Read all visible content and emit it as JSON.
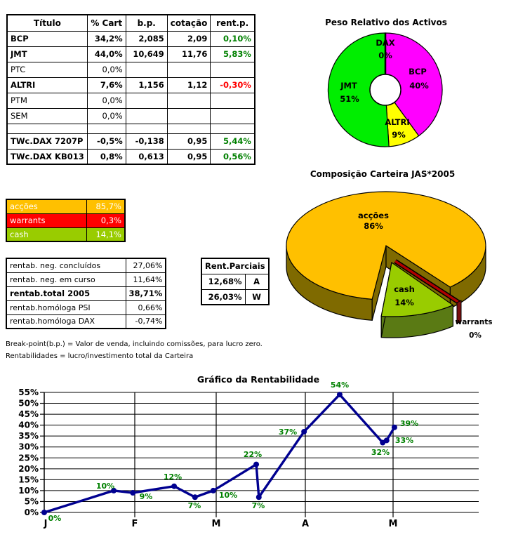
{
  "main_table": {
    "headers": [
      "Título",
      "% Cart",
      "b.p.",
      "cotação",
      "rent.p."
    ],
    "rows": [
      {
        "title": "BCP",
        "cart": "34,2%",
        "bp": "2,085",
        "cot": "2,09",
        "rent": "0,10%",
        "rent_color": "#008000"
      },
      {
        "title": "JMT",
        "cart": "44,0%",
        "bp": "10,649",
        "cot": "11,76",
        "rent": "5,83%",
        "rent_color": "#008000"
      },
      {
        "title": "PTC",
        "cart": "0,0%",
        "bp": "",
        "cot": "",
        "rent": "",
        "rent_color": ""
      },
      {
        "title": "ALTRI",
        "cart": "7,6%",
        "bp": "1,156",
        "cot": "1,12",
        "rent": "-0,30%",
        "rent_color": "#FF0000"
      },
      {
        "title": "PTM",
        "cart": "0,0%",
        "bp": "",
        "cot": "",
        "rent": "",
        "rent_color": ""
      },
      {
        "title": "SEM",
        "cart": "0,0%",
        "bp": "",
        "cot": "",
        "rent": "",
        "rent_color": ""
      },
      {
        "title": "",
        "cart": "",
        "bp": "",
        "cot": "",
        "rent": "",
        "rent_color": ""
      },
      {
        "title": "TWc.DAX 7207P",
        "cart": "-0,5%",
        "bp": "-0,138",
        "cot": "0,95",
        "rent": "5,44%",
        "rent_color": "#008000"
      },
      {
        "title": "TWc.DAX KB013",
        "cart": "0,8%",
        "bp": "0,613",
        "cot": "0,95",
        "rent": "0,56%",
        "rent_color": "#008000"
      }
    ]
  },
  "alloc": {
    "rows": [
      {
        "label": "acções",
        "value": "85,7%",
        "color": "#FFC000"
      },
      {
        "label": "warrants",
        "value": "0,3%",
        "color": "#FF0000"
      },
      {
        "label": "cash",
        "value": "14,1%",
        "color": "#99CC00"
      }
    ]
  },
  "rentab": {
    "rows": [
      {
        "label": "rentab. neg. concluídos",
        "value": "27,06%"
      },
      {
        "label": "rentab. neg. em curso",
        "value": "11,64%"
      },
      {
        "label": "rentab.total 2005",
        "value": "38,71%"
      },
      {
        "label": "rentab.homóloga PSI",
        "value": "0,66%"
      },
      {
        "label": "rentab.homóloga DAX",
        "value": "-0,74%"
      }
    ]
  },
  "parciais": {
    "title": "Rent.Parciais",
    "rows": [
      {
        "value": "12,68%",
        "letter": "A"
      },
      {
        "value": "26,03%",
        "letter": "W"
      }
    ]
  },
  "footnotes": [
    "Break-point(b.p.) = Valor de venda, incluindo comissões, para lucro zero.",
    "Rentabilidades = lucro/investimento total da Carteira"
  ],
  "chart_data": [
    {
      "type": "pie",
      "variant": "donut",
      "title": "Peso Relativo dos Activos",
      "start_angle": "top",
      "direction": "clockwise",
      "slices": [
        {
          "label": "DAX",
          "pct": 0,
          "color": "#000000"
        },
        {
          "label": "BCP",
          "pct": 40,
          "color": "#FF00FF"
        },
        {
          "label": "ALTRI",
          "pct": 9,
          "color": "#FFFF00"
        },
        {
          "label": "JMT",
          "pct": 51,
          "color": "#00EE00"
        }
      ]
    },
    {
      "type": "pie",
      "variant": "3d-exploded",
      "title": "Composição Carteira JAS*2005",
      "slices": [
        {
          "label": "acções",
          "pct": 86,
          "color": "#FFC000",
          "side_color": "#7F6A00"
        },
        {
          "label": "cash",
          "pct": 14,
          "color": "#99CC00",
          "side_color": "#5A7A14"
        },
        {
          "label": "warrants",
          "pct": 0,
          "color": "#B00000",
          "side_color": "#7A0E0E"
        }
      ]
    },
    {
      "type": "line",
      "title": "Gráfico da Rentabilidade",
      "months": [
        "J",
        "F",
        "M",
        "A",
        "M"
      ],
      "ylim": [
        0,
        55
      ],
      "ytick_step": 5,
      "ytick_format": "percent",
      "grid": true,
      "label_color": "#008000",
      "series": [
        {
          "name": "rentabilidade",
          "color": "#000090",
          "points": [
            {
              "x": 0.0,
              "y": 0
            },
            {
              "x": 0.16,
              "y": 10
            },
            {
              "x": 0.204,
              "y": 9
            },
            {
              "x": 0.299,
              "y": 12
            },
            {
              "x": 0.347,
              "y": 7
            },
            {
              "x": 0.389,
              "y": 10
            },
            {
              "x": 0.488,
              "y": 22
            },
            {
              "x": 0.494,
              "y": 7
            },
            {
              "x": 0.598,
              "y": 37
            },
            {
              "x": 0.68,
              "y": 54
            },
            {
              "x": 0.779,
              "y": 32
            },
            {
              "x": 0.788,
              "y": 33
            },
            {
              "x": 0.806,
              "y": 39
            }
          ]
        }
      ],
      "point_labels": [
        "0%",
        "10%",
        "9%",
        "12%",
        "7%",
        "10%",
        "22%",
        "7%",
        "37%",
        "54%",
        "32%",
        "33%",
        "39%"
      ]
    }
  ]
}
